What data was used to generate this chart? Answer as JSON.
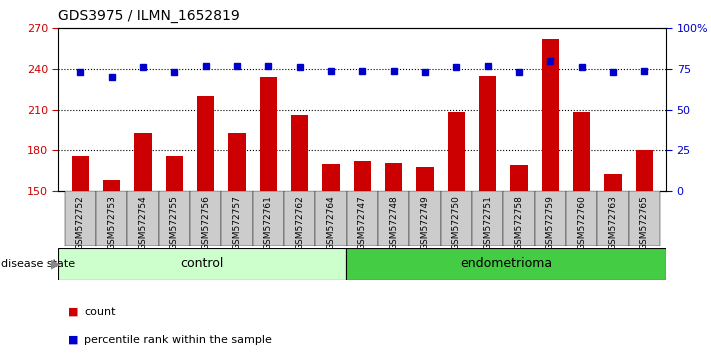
{
  "title": "GDS3975 / ILMN_1652819",
  "samples": [
    "GSM572752",
    "GSM572753",
    "GSM572754",
    "GSM572755",
    "GSM572756",
    "GSM572757",
    "GSM572761",
    "GSM572762",
    "GSM572764",
    "GSM572747",
    "GSM572748",
    "GSM572749",
    "GSM572750",
    "GSM572751",
    "GSM572758",
    "GSM572759",
    "GSM572760",
    "GSM572763",
    "GSM572765"
  ],
  "counts": [
    176,
    158,
    193,
    176,
    220,
    193,
    234,
    206,
    170,
    172,
    171,
    168,
    208,
    235,
    169,
    262,
    208,
    163,
    180
  ],
  "percentiles": [
    73,
    70,
    76,
    73,
    77,
    77,
    77,
    76,
    74,
    74,
    74,
    73,
    76,
    77,
    73,
    80,
    76,
    73,
    74
  ],
  "control_count": 9,
  "endometrioma_count": 10,
  "ylim_left": [
    150,
    270
  ],
  "ylim_right": [
    0,
    100
  ],
  "yticks_left": [
    150,
    180,
    210,
    240,
    270
  ],
  "yticks_right": [
    0,
    25,
    50,
    75,
    100
  ],
  "bar_color": "#cc0000",
  "dot_color": "#0000cc",
  "control_color": "#ccffcc",
  "endometrioma_color": "#44cc44",
  "background_color": "#ffffff",
  "tick_bg_color": "#cccccc",
  "disease_state_label": "disease state"
}
